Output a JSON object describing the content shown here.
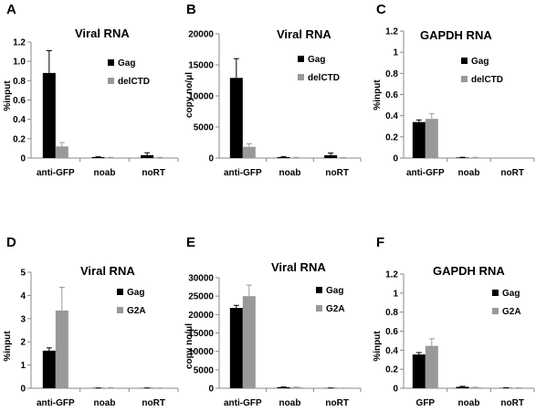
{
  "colors": {
    "gag": "#000000",
    "second": "#999999",
    "axis": "#888888"
  },
  "chart_data": [
    {
      "panel": "A",
      "type": "bar",
      "title": "Viral RNA",
      "ylabel": "%input",
      "xlabel": "",
      "ylim": [
        0,
        1.2
      ],
      "yticks": [
        "0",
        "0.2",
        "0.4",
        "0.6",
        "0.8",
        "1.0",
        "1.2"
      ],
      "categories": [
        "anti-GFP",
        "noab",
        "noRT"
      ],
      "series": [
        {
          "name": "Gag",
          "values": [
            0.88,
            0.01,
            0.03
          ],
          "errors": [
            0.23,
            0.003,
            0.025
          ]
        },
        {
          "name": "delCTD",
          "values": [
            0.12,
            0.005,
            0.005
          ],
          "errors": [
            0.04,
            0.002,
            0.002
          ]
        }
      ]
    },
    {
      "panel": "B",
      "type": "bar",
      "title": "Viral RNA",
      "ylabel": "copy no/μl",
      "xlabel": "",
      "ylim": [
        0,
        20000
      ],
      "yticks": [
        "0",
        "5000",
        "10000",
        "15000",
        "20000"
      ],
      "categories": [
        "anti-GFP",
        "noab",
        "noRT"
      ],
      "series": [
        {
          "name": "Gag",
          "values": [
            12900,
            150,
            450
          ],
          "errors": [
            3100,
            60,
            350
          ]
        },
        {
          "name": "delCTD",
          "values": [
            1800,
            80,
            60
          ],
          "errors": [
            500,
            30,
            20
          ]
        }
      ]
    },
    {
      "panel": "C",
      "type": "bar",
      "title": "GAPDH RNA",
      "ylabel": "%input",
      "xlabel": "",
      "ylim": [
        0,
        1.2
      ],
      "yticks": [
        "0",
        "0.2",
        "0.4",
        "0.6",
        "0.8",
        "1",
        "1.2"
      ],
      "categories": [
        "anti-GFP",
        "noab",
        "noRT"
      ],
      "series": [
        {
          "name": "Gag",
          "values": [
            0.34,
            0.005,
            0.0
          ],
          "errors": [
            0.02,
            0.002,
            0.0
          ]
        },
        {
          "name": "delCTD",
          "values": [
            0.37,
            0.004,
            0.0
          ],
          "errors": [
            0.05,
            0.002,
            0.0
          ]
        }
      ]
    },
    {
      "panel": "D",
      "type": "bar",
      "title": "Viral RNA",
      "ylabel": "%input",
      "xlabel": "",
      "ylim": [
        0,
        5
      ],
      "yticks": [
        "0",
        "1",
        "2",
        "3",
        "4",
        "5"
      ],
      "categories": [
        "anti-GFP",
        "noab",
        "noRT"
      ],
      "series": [
        {
          "name": "Gag",
          "values": [
            1.62,
            0.01,
            0.01
          ],
          "errors": [
            0.12,
            0.003,
            0.003
          ]
        },
        {
          "name": "G2A",
          "values": [
            3.35,
            0.02,
            0.01
          ],
          "errors": [
            1.0,
            0.01,
            0.003
          ]
        }
      ]
    },
    {
      "panel": "E",
      "type": "bar",
      "title": "Viral RNA",
      "ylabel": "copy no/μl",
      "xlabel": "",
      "ylim": [
        0,
        30000
      ],
      "yticks": [
        "0",
        "5000",
        "10000",
        "15000",
        "20000",
        "25000",
        "30000"
      ],
      "categories": [
        "anti-GFP",
        "noab",
        "noRT"
      ],
      "series": [
        {
          "name": "Gag",
          "values": [
            21800,
            300,
            50
          ],
          "errors": [
            700,
            60,
            20
          ]
        },
        {
          "name": "G2A",
          "values": [
            25000,
            250,
            40
          ],
          "errors": [
            3000,
            60,
            15
          ]
        }
      ]
    },
    {
      "panel": "F",
      "type": "bar",
      "title": "GAPDH RNA",
      "ylabel": "%input",
      "xlabel": "",
      "ylim": [
        0,
        1.2
      ],
      "yticks": [
        "0",
        "0.2",
        "0.4",
        "0.6",
        "0.8",
        "1",
        "1.2"
      ],
      "categories": [
        "GFP",
        "noab",
        "noRT"
      ],
      "series": [
        {
          "name": "Gag",
          "values": [
            0.355,
            0.015,
            0.003
          ],
          "errors": [
            0.02,
            0.005,
            0.002
          ]
        },
        {
          "name": "G2A",
          "values": [
            0.445,
            0.008,
            0.003
          ],
          "errors": [
            0.075,
            0.003,
            0.002
          ]
        }
      ]
    }
  ]
}
